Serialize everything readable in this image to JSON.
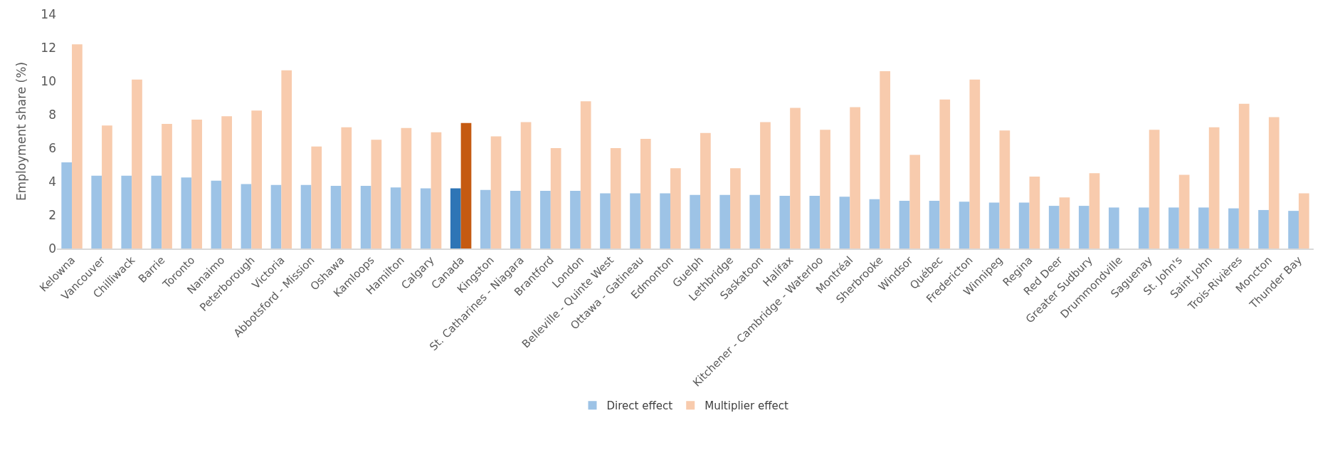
{
  "chart_data": {
    "type": "bar",
    "ylabel": "Employment share (%)",
    "categories": [
      "Kelowna",
      "Vancouver",
      "Chilliwack",
      "Barrie",
      "Toronto",
      "Nanaimo",
      "Peterborough",
      "Victoria",
      "Abbotsford - Mission",
      "Oshawa",
      "Kamloops",
      "Hamilton",
      "Calgary",
      "Canada",
      "Kingston",
      "St. Catharines - Niagara",
      "Brantford",
      "London",
      "Belleville - Quinte West",
      "Ottawa - Gatineau",
      "Edmonton",
      "Guelph",
      "Lethbridge",
      "Saskatoon",
      "Halifax",
      "Kitchener - Cambridge - Waterloo",
      "Montréal",
      "Sherbrooke",
      "Windsor",
      "Québec",
      "Fredericton",
      "Winnipeg",
      "Regina",
      "Red Deer",
      "Greater Sudbury",
      "Drummondville",
      "Saguenay",
      "St. John's",
      "Saint John",
      "Trois-Rivières",
      "Moncton",
      "Thunder Bay"
    ],
    "series": [
      {
        "name": "Direct effect",
        "color": "#9dc3e6",
        "colors": [
          "#9dc3e6",
          "#9dc3e6",
          "#9dc3e6",
          "#9dc3e6",
          "#9dc3e6",
          "#9dc3e6",
          "#9dc3e6",
          "#9dc3e6",
          "#9dc3e6",
          "#9dc3e6",
          "#9dc3e6",
          "#9dc3e6",
          "#9dc3e6",
          "#2e75b6",
          "#9dc3e6",
          "#9dc3e6",
          "#9dc3e6",
          "#9dc3e6",
          "#9dc3e6",
          "#9dc3e6",
          "#9dc3e6",
          "#9dc3e6",
          "#9dc3e6",
          "#9dc3e6",
          "#9dc3e6",
          "#9dc3e6",
          "#9dc3e6",
          "#9dc3e6",
          "#9dc3e6",
          "#9dc3e6",
          "#9dc3e6",
          "#9dc3e6",
          "#9dc3e6",
          "#9dc3e6",
          "#9dc3e6",
          "#9dc3e6",
          "#9dc3e6",
          "#9dc3e6",
          "#9dc3e6",
          "#9dc3e6",
          "#9dc3e6",
          "#9dc3e6"
        ],
        "values": [
          5.15,
          4.35,
          4.35,
          4.35,
          4.25,
          4.05,
          3.85,
          3.8,
          3.8,
          3.75,
          3.75,
          3.65,
          3.6,
          3.6,
          3.5,
          3.45,
          3.45,
          3.45,
          3.3,
          3.3,
          3.3,
          3.2,
          3.2,
          3.2,
          3.15,
          3.15,
          3.1,
          2.95,
          2.85,
          2.85,
          2.8,
          2.75,
          2.75,
          2.55,
          2.55,
          2.45,
          2.45,
          2.45,
          2.45,
          2.4,
          2.3,
          2.25
        ]
      },
      {
        "name": "Multiplier effect",
        "color": "#f8cbad",
        "colors": [
          "#f8cbad",
          "#f8cbad",
          "#f8cbad",
          "#f8cbad",
          "#f8cbad",
          "#f8cbad",
          "#f8cbad",
          "#f8cbad",
          "#f8cbad",
          "#f8cbad",
          "#f8cbad",
          "#f8cbad",
          "#f8cbad",
          "#c55a11",
          "#f8cbad",
          "#f8cbad",
          "#f8cbad",
          "#f8cbad",
          "#f8cbad",
          "#f8cbad",
          "#f8cbad",
          "#f8cbad",
          "#f8cbad",
          "#f8cbad",
          "#f8cbad",
          "#f8cbad",
          "#f8cbad",
          "#f8cbad",
          "#f8cbad",
          "#f8cbad",
          "#f8cbad",
          "#f8cbad",
          "#f8cbad",
          "#f8cbad",
          "#f8cbad",
          "#f8cbad",
          "#f8cbad",
          "#f8cbad",
          "#f8cbad",
          "#f8cbad",
          "#f8cbad",
          "#f8cbad"
        ],
        "values": [
          12.2,
          7.35,
          10.1,
          7.45,
          7.7,
          7.9,
          8.25,
          10.65,
          6.1,
          7.25,
          6.5,
          7.2,
          6.95,
          7.5,
          6.7,
          7.55,
          6.0,
          8.8,
          6.0,
          6.55,
          4.8,
          6.9,
          4.8,
          7.55,
          8.4,
          7.1,
          8.45,
          10.6,
          5.6,
          8.9,
          10.1,
          7.05,
          4.3,
          3.05,
          4.5,
          null,
          7.1,
          4.4,
          7.25,
          8.65,
          7.85,
          3.3
        ]
      }
    ],
    "ylim": [
      0,
      14
    ],
    "yticks": [
      0,
      2,
      4,
      6,
      8,
      10,
      12,
      14
    ],
    "grid": false,
    "legend": "bottom"
  }
}
